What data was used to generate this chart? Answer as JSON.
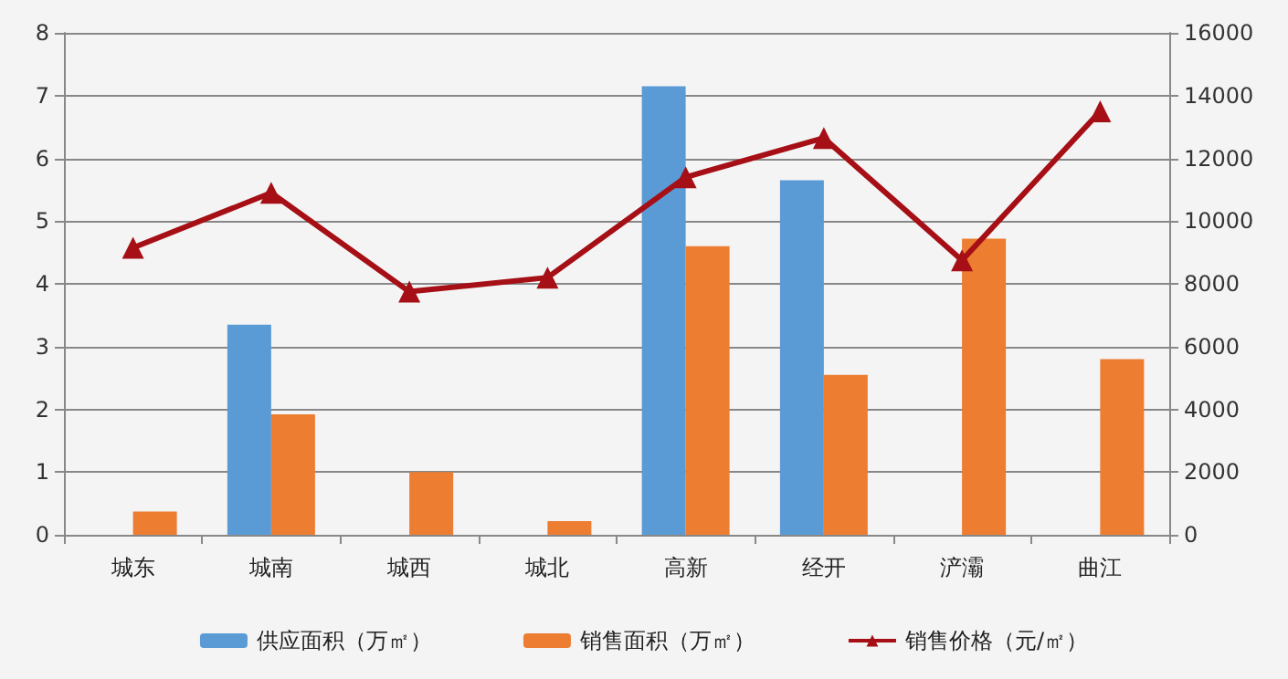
{
  "chart_data": {
    "type": "bar",
    "categories": [
      "城东",
      "城南",
      "城西",
      "城北",
      "高新",
      "经开",
      "浐灞",
      "曲江"
    ],
    "series": [
      {
        "name": "供应面积（万㎡）",
        "color": "#5b9bd5",
        "values": [
          null,
          3.35,
          null,
          null,
          7.15,
          5.65,
          null,
          null
        ]
      },
      {
        "name": "销售面积（万㎡）",
        "color": "#ed7d31",
        "values": [
          0.37,
          1.92,
          1.0,
          0.22,
          4.6,
          2.55,
          4.72,
          2.8
        ]
      },
      {
        "name": "销售价格（元/㎡）",
        "type": "line",
        "axis": "y2",
        "color": "#a50f15",
        "values": [
          9150,
          10900,
          7750,
          8200,
          11400,
          12650,
          8750,
          13500
        ]
      }
    ],
    "ylim": [
      0,
      8
    ],
    "yticks": [
      0,
      1,
      2,
      3,
      4,
      5,
      6,
      7,
      8
    ],
    "y2lim": [
      0,
      16000
    ],
    "y2ticks": [
      0,
      2000,
      4000,
      6000,
      8000,
      10000,
      12000,
      14000,
      16000
    ],
    "grid": "y",
    "legend": "bottom",
    "marker": "triangle"
  }
}
